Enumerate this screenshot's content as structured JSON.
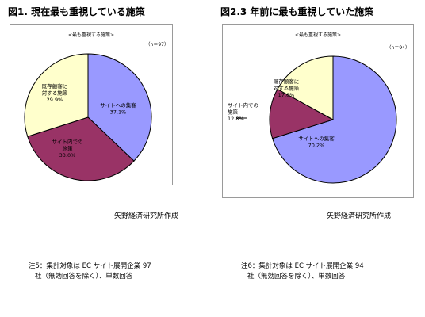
{
  "chart_data": [
    {
      "type": "pie",
      "title": "図1. 現在最も重視している施策",
      "subtitle": "<最も重視する施策>",
      "n_label": "（n＝97）",
      "credit": "矢野経済研究所作成",
      "note_line1": "注5：集計対象は EC サイト展開企業 97",
      "note_line2": "社（無効回答を除く）、単数回答",
      "slices": [
        {
          "label_lines": [
            "サイトへの集客"
          ],
          "value_label": "37.1%",
          "value": 37.1,
          "color": "#9999ff"
        },
        {
          "label_lines": [
            "サイト内での",
            "施策"
          ],
          "value_label": "33.0%",
          "value": 33.0,
          "color": "#993366"
        },
        {
          "label_lines": [
            "既存顧客に",
            "対する施策"
          ],
          "value_label": "29.9%",
          "value": 29.9,
          "color": "#ffffcc"
        }
      ]
    },
    {
      "type": "pie",
      "title": "図2.3 年前に最も重視していた施策",
      "subtitle": "<最も重視する施策>",
      "n_label": "（n＝94）",
      "credit": "矢野経済研究所作成",
      "note_line1": "注6：集計対象は EC サイト展開企業 94",
      "note_line2": "社（無効回答を除く）、単数回答",
      "slices": [
        {
          "label_lines": [
            "サイトへの集客"
          ],
          "value_label": "70.2%",
          "value": 70.2,
          "color": "#9999ff"
        },
        {
          "label_lines": [
            "サイト内での",
            "施策"
          ],
          "value_label": "12.8%",
          "value": 12.8,
          "color": "#993366"
        },
        {
          "label_lines": [
            "既存顧客に",
            "対する施策"
          ],
          "value_label": "17.0%",
          "value": 17.0,
          "color": "#ffffcc"
        }
      ]
    }
  ]
}
